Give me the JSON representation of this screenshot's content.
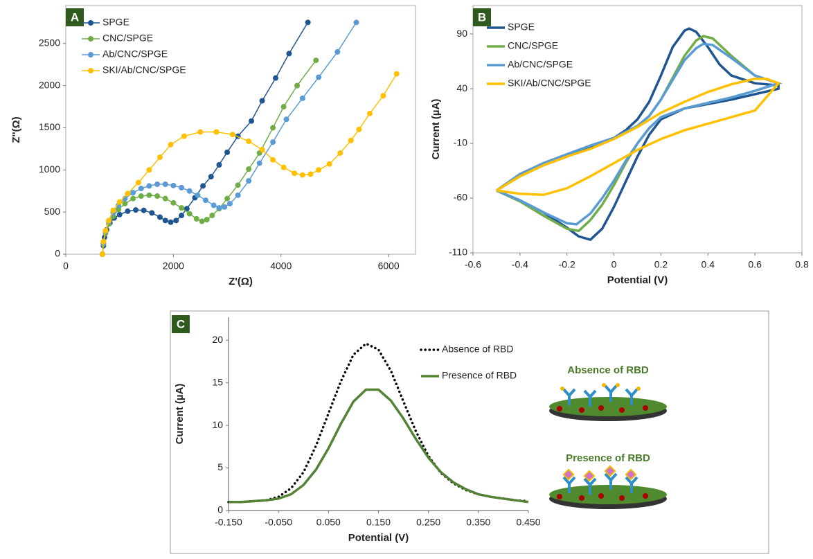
{
  "chart_data": [
    {
      "type": "line",
      "panel": "A",
      "markers": true,
      "x_label": "Z'(Ω)",
      "y_label": "Z''(Ω)",
      "xlim": [
        0,
        6500
      ],
      "xticks": [
        0,
        2000,
        4000,
        6000
      ],
      "ylim": [
        0,
        2950
      ],
      "yticks": [
        0,
        500,
        1000,
        1500,
        2000,
        2500
      ],
      "legend": "upper left",
      "series": [
        {
          "name": "SPGE",
          "color": "#1f5591",
          "x": [
            680,
            700,
            720,
            760,
            820,
            900,
            1000,
            1150,
            1300,
            1450,
            1600,
            1750,
            1850,
            1950,
            2050,
            2150,
            2250,
            2400,
            2550,
            2700,
            2850,
            3000,
            3200,
            3450,
            3650,
            3900,
            4150,
            4500
          ],
          "values": [
            0,
            100,
            200,
            290,
            370,
            430,
            470,
            510,
            525,
            520,
            490,
            440,
            400,
            380,
            400,
            460,
            540,
            670,
            810,
            920,
            1060,
            1210,
            1400,
            1580,
            1820,
            2090,
            2380,
            2750
          ]
        },
        {
          "name": "CNC/SPGE",
          "color": "#70ad47",
          "x": [
            680,
            700,
            740,
            800,
            880,
            980,
            1100,
            1250,
            1400,
            1550,
            1700,
            1850,
            2000,
            2150,
            2300,
            2430,
            2530,
            2620,
            2720,
            2850,
            3000,
            3200,
            3400,
            3600,
            3850,
            4050,
            4300,
            4650
          ],
          "values": [
            0,
            120,
            250,
            360,
            450,
            530,
            600,
            660,
            690,
            700,
            690,
            660,
            610,
            550,
            480,
            420,
            390,
            410,
            460,
            540,
            660,
            820,
            1010,
            1200,
            1500,
            1750,
            2000,
            2300
          ]
        },
        {
          "name": "Ab/CNC/SPGE",
          "color": "#5b9bd5",
          "x": [
            680,
            700,
            740,
            800,
            880,
            980,
            1100,
            1250,
            1400,
            1550,
            1700,
            1850,
            2000,
            2150,
            2300,
            2450,
            2600,
            2750,
            2850,
            2950,
            3050,
            3200,
            3400,
            3600,
            3850,
            4100,
            4400,
            4700,
            5050,
            5400
          ],
          "values": [
            0,
            130,
            270,
            390,
            490,
            580,
            660,
            730,
            780,
            810,
            830,
            830,
            815,
            790,
            750,
            700,
            640,
            580,
            550,
            560,
            600,
            700,
            870,
            1080,
            1330,
            1600,
            1850,
            2100,
            2400,
            2750
          ]
        },
        {
          "name": "SKI/Ab/CNC/SPGE",
          "color": "#ffc000",
          "x": [
            680,
            700,
            740,
            800,
            880,
            1000,
            1150,
            1350,
            1550,
            1750,
            1950,
            2200,
            2500,
            2800,
            3100,
            3400,
            3650,
            3850,
            4050,
            4250,
            4400,
            4550,
            4700,
            4900,
            5100,
            5300,
            5450,
            5650,
            5900,
            6150
          ],
          "values": [
            0,
            150,
            280,
            400,
            520,
            620,
            720,
            850,
            1000,
            1150,
            1300,
            1400,
            1450,
            1450,
            1420,
            1340,
            1240,
            1120,
            1030,
            960,
            940,
            950,
            1000,
            1070,
            1200,
            1350,
            1480,
            1670,
            1880,
            2140
          ]
        }
      ]
    },
    {
      "type": "line",
      "panel": "B",
      "markers": false,
      "x_label": "Potential (V)",
      "y_label": "Current (µA)",
      "xlim": [
        -0.6,
        0.8
      ],
      "xticks": [
        -0.6,
        -0.4,
        -0.2,
        0,
        0.2,
        0.4,
        0.6,
        0.8
      ],
      "ylim": [
        -110,
        116
      ],
      "yticks": [
        -110,
        -60,
        -10,
        40,
        90
      ],
      "legend": "upper left",
      "series": [
        {
          "name": "SPGE",
          "color": "#1f5591",
          "x": [
            -0.5,
            -0.4,
            -0.3,
            -0.2,
            -0.1,
            0,
            0.05,
            0.1,
            0.15,
            0.2,
            0.25,
            0.3,
            0.32,
            0.35,
            0.4,
            0.45,
            0.5,
            0.6,
            0.7,
            0.7,
            0.6,
            0.5,
            0.4,
            0.3,
            0.2,
            0.15,
            0.1,
            0.05,
            0,
            -0.05,
            -0.1,
            -0.15,
            -0.2,
            -0.3,
            -0.4,
            -0.5
          ],
          "values": [
            -53,
            -40,
            -30,
            -22,
            -14,
            -5,
            2,
            12,
            28,
            52,
            78,
            93,
            95,
            92,
            78,
            62,
            52,
            45,
            43,
            40,
            35,
            30,
            26,
            22,
            12,
            -2,
            -22,
            -45,
            -68,
            -88,
            -98,
            -95,
            -87,
            -73,
            -62,
            -53
          ]
        },
        {
          "name": "CNC/SPGE",
          "color": "#70ad47",
          "x": [
            -0.5,
            -0.4,
            -0.3,
            -0.2,
            -0.1,
            0,
            0.1,
            0.15,
            0.2,
            0.25,
            0.3,
            0.35,
            0.38,
            0.42,
            0.5,
            0.6,
            0.7,
            0.6,
            0.5,
            0.4,
            0.3,
            0.2,
            0.15,
            0.1,
            0.05,
            0,
            -0.05,
            -0.1,
            -0.15,
            -0.2,
            -0.3,
            -0.4,
            -0.5
          ],
          "values": [
            -53,
            -38,
            -28,
            -20,
            -12,
            -5,
            6,
            15,
            30,
            50,
            70,
            84,
            88,
            86,
            70,
            52,
            45,
            38,
            32,
            27,
            22,
            14,
            4,
            -10,
            -28,
            -48,
            -66,
            -80,
            -90,
            -88,
            -76,
            -63,
            -53
          ]
        },
        {
          "name": "Ab/CNC/SPGE",
          "color": "#5b9bd5",
          "x": [
            -0.5,
            -0.4,
            -0.3,
            -0.2,
            -0.1,
            0,
            0.1,
            0.15,
            0.2,
            0.25,
            0.3,
            0.35,
            0.38,
            0.42,
            0.5,
            0.6,
            0.7,
            0.6,
            0.5,
            0.4,
            0.3,
            0.2,
            0.15,
            0.1,
            0.05,
            0,
            -0.05,
            -0.1,
            -0.16,
            -0.2,
            -0.3,
            -0.4,
            -0.5
          ],
          "values": [
            -53,
            -38,
            -28,
            -20,
            -12,
            -5,
            6,
            15,
            30,
            48,
            66,
            77,
            81,
            80,
            68,
            52,
            45,
            38,
            32,
            27,
            22,
            14,
            4,
            -10,
            -26,
            -44,
            -60,
            -74,
            -84,
            -83,
            -73,
            -62,
            -53
          ]
        },
        {
          "name": "SKI/Ab/CNC/SPGE",
          "color": "#ffc000",
          "x": [
            -0.5,
            -0.4,
            -0.3,
            -0.2,
            -0.1,
            0,
            0.1,
            0.2,
            0.3,
            0.4,
            0.5,
            0.6,
            0.65,
            0.7,
            0.6,
            0.5,
            0.4,
            0.3,
            0.2,
            0.1,
            0,
            -0.1,
            -0.2,
            -0.3,
            -0.4,
            -0.5
          ],
          "values": [
            -53,
            -40,
            -30,
            -22,
            -15,
            -6,
            5,
            18,
            28,
            37,
            44,
            49,
            49,
            45,
            20,
            14,
            8,
            2,
            -6,
            -16,
            -28,
            -40,
            -51,
            -57,
            -56,
            -53
          ]
        }
      ]
    },
    {
      "type": "line",
      "panel": "C",
      "markers": false,
      "x_label": "Potential (V)",
      "y_label": "Current (µA)",
      "xlim": [
        -0.15,
        0.45
      ],
      "xticks": [
        {
          "value": -0.15,
          "label": "-0.150"
        },
        {
          "value": -0.05,
          "label": "-0.050"
        },
        {
          "value": 0.05,
          "label": "0.050"
        },
        {
          "value": 0.15,
          "label": "0.150"
        },
        {
          "value": 0.25,
          "label": "0.250"
        },
        {
          "value": 0.35,
          "label": "0.350"
        },
        {
          "value": 0.45,
          "label": "0.450"
        }
      ],
      "ylim": [
        0,
        22.7
      ],
      "yticks": [
        0,
        5,
        10,
        15,
        20
      ],
      "legend": "upper right",
      "annotations": [
        "Absence of RBD",
        "Presence of RBD"
      ],
      "series": [
        {
          "name": "Absence of RBD",
          "color": "#000000",
          "linestyle": "dotted",
          "x": [
            -0.15,
            -0.125,
            -0.1,
            -0.075,
            -0.05,
            -0.025,
            0,
            0.025,
            0.05,
            0.075,
            0.1,
            0.125,
            0.15,
            0.175,
            0.2,
            0.225,
            0.25,
            0.275,
            0.3,
            0.325,
            0.35,
            0.375,
            0.4,
            0.425,
            0.45
          ],
          "values": [
            1.0,
            1.0,
            1.1,
            1.2,
            1.6,
            2.6,
            4.5,
            7.6,
            11.4,
            15.2,
            18.3,
            19.6,
            18.9,
            16.4,
            12.8,
            9.3,
            6.4,
            4.4,
            3.2,
            2.4,
            1.9,
            1.6,
            1.4,
            1.2,
            1.1
          ]
        },
        {
          "name": "Presence of RBD",
          "color": "#548235",
          "linestyle": "solid",
          "x": [
            -0.15,
            -0.125,
            -0.1,
            -0.075,
            -0.05,
            -0.025,
            0,
            0.025,
            0.05,
            0.075,
            0.1,
            0.125,
            0.15,
            0.175,
            0.2,
            0.225,
            0.25,
            0.275,
            0.3,
            0.325,
            0.35,
            0.375,
            0.4,
            0.425,
            0.45
          ],
          "values": [
            1.0,
            1.0,
            1.1,
            1.2,
            1.4,
            1.9,
            3.0,
            4.8,
            7.3,
            10.2,
            12.8,
            14.2,
            14.2,
            12.9,
            10.8,
            8.4,
            6.2,
            4.5,
            3.3,
            2.5,
            1.9,
            1.6,
            1.4,
            1.2,
            1.0
          ]
        }
      ]
    }
  ]
}
